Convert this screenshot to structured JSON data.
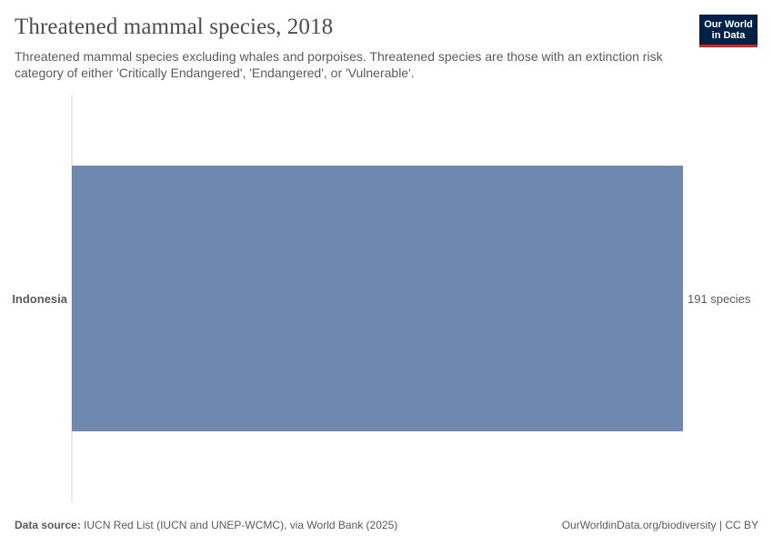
{
  "header": {
    "title": "Threatened mammal species, 2018",
    "subtitle": "Threatened mammal species excluding whales and porpoises. Threatened species are those with an extinction risk category of either 'Critically Endangered', 'Endangered', or 'Vulnerable'."
  },
  "logo": {
    "line1": "Our World",
    "line2": "in Data"
  },
  "chart_data": {
    "type": "bar",
    "orientation": "horizontal",
    "title": "Threatened mammal species, 2018",
    "categories": [
      "Indonesia"
    ],
    "values": [
      191
    ],
    "value_labels": [
      "191 species"
    ],
    "unit": "species",
    "xlim": [
      0,
      191
    ],
    "xlabel": "",
    "ylabel": "",
    "grid": false,
    "bar_color": "#6f88b0"
  },
  "footer": {
    "source_label": "Data source:",
    "source_text": "IUCN Red List (IUCN and UNEP-WCMC), via World Bank (2025)",
    "credit": "OurWorldinData.org/biodiversity | CC BY"
  },
  "colors": {
    "bar": "#6f88b0",
    "axis": "#d7d7d7",
    "logo_bg": "#002147",
    "logo_accent": "#ce261e"
  }
}
